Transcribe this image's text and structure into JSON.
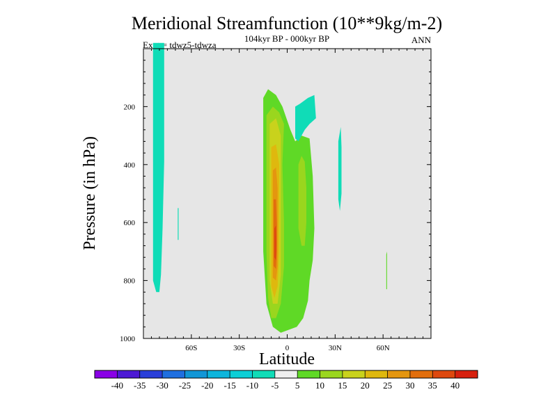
{
  "chart_data": {
    "type": "heatmap",
    "subtype": "filled-contour",
    "title": "Meridional Streamfunction (10**9kg/m-2)",
    "subtitle": "104kyr BP - 000kyr BP",
    "left_label": "Expt = tdwz5-tdwza",
    "right_label": "ANN",
    "xlabel": "Latitude",
    "ylabel": "Pressure (in hPa)",
    "xlim": [
      -90,
      90
    ],
    "ylim": [
      1000,
      0
    ],
    "x_ticks": [
      {
        "value": -60,
        "label": "60S"
      },
      {
        "value": -30,
        "label": "30S"
      },
      {
        "value": 0,
        "label": "0"
      },
      {
        "value": 30,
        "label": "30N"
      },
      {
        "value": 60,
        "label": "60N"
      }
    ],
    "y_ticks": [
      {
        "value": 200,
        "label": "200"
      },
      {
        "value": 400,
        "label": "400"
      },
      {
        "value": 600,
        "label": "600"
      },
      {
        "value": 800,
        "label": "800"
      },
      {
        "value": 1000,
        "label": "1000"
      }
    ],
    "background_color": "#e6e6e6",
    "colorbar": {
      "levels": [
        -40,
        -35,
        -30,
        -25,
        -20,
        -15,
        -10,
        -5,
        5,
        10,
        15,
        20,
        25,
        30,
        35,
        40
      ],
      "colors": [
        "#8a00e6",
        "#4d19d4",
        "#2a3fd9",
        "#1f6fe0",
        "#1296d6",
        "#0db5dc",
        "#0ccfd6",
        "#10dcb7",
        "#eeeeee",
        "#5fd926",
        "#9ad61e",
        "#c9d21c",
        "#dfb80e",
        "#e4960f",
        "#e26e0d",
        "#de480e",
        "#d7200e"
      ]
    },
    "regions": [
      {
        "name": "sh-negative-cell",
        "value": -7.5,
        "points": [
          [
            -84,
            -2
          ],
          [
            -77,
            -2
          ],
          [
            -77,
            39
          ],
          [
            -78,
            62
          ],
          [
            -79,
            78
          ],
          [
            -80,
            84
          ],
          [
            -82,
            84
          ],
          [
            -84,
            80
          ],
          [
            -84,
            60
          ]
        ]
      },
      {
        "name": "sh-small-negative-strip",
        "value": -7.5,
        "points": [
          [
            -68.5,
            55
          ],
          [
            -68,
            55
          ],
          [
            -68,
            66
          ],
          [
            -68.5,
            66
          ]
        ]
      },
      {
        "name": "positive-cell-5",
        "value": 7.5,
        "points": [
          [
            -15,
            17
          ],
          [
            -12,
            14
          ],
          [
            -7,
            16
          ],
          [
            -3,
            20
          ],
          [
            2,
            28
          ],
          [
            5,
            32
          ],
          [
            9,
            30
          ],
          [
            14,
            31
          ],
          [
            16,
            44
          ],
          [
            17,
            62
          ],
          [
            16,
            73
          ],
          [
            14,
            80
          ],
          [
            13,
            87
          ],
          [
            10,
            93
          ],
          [
            6,
            96
          ],
          [
            1,
            97
          ],
          [
            -4,
            98
          ],
          [
            -9,
            96
          ],
          [
            -13,
            88
          ],
          [
            -15,
            70
          ],
          [
            -15,
            40
          ]
        ]
      },
      {
        "name": "positive-cell-10",
        "value": 12.5,
        "points": [
          [
            -13,
            23
          ],
          [
            -9,
            20
          ],
          [
            -5,
            22
          ],
          [
            -2,
            26
          ],
          [
            -3,
            40
          ],
          [
            -2,
            60
          ],
          [
            -2,
            75
          ],
          [
            -4,
            88
          ],
          [
            -7,
            93
          ],
          [
            -10,
            93
          ],
          [
            -12,
            86
          ],
          [
            -13,
            70
          ],
          [
            -13,
            40
          ]
        ]
      },
      {
        "name": "positive-cell-15",
        "value": 17.5,
        "points": [
          [
            -11,
            26
          ],
          [
            -7,
            24
          ],
          [
            -4,
            30
          ],
          [
            -4,
            45
          ],
          [
            -4,
            65
          ],
          [
            -4,
            78
          ],
          [
            -6,
            88
          ],
          [
            -9,
            88
          ],
          [
            -11,
            80
          ],
          [
            -11,
            60
          ],
          [
            -11,
            40
          ]
        ]
      },
      {
        "name": "positive-cell-20",
        "value": 22.5,
        "points": [
          [
            -10,
            34
          ],
          [
            -7,
            33
          ],
          [
            -5,
            40
          ],
          [
            -5,
            55
          ],
          [
            -5,
            70
          ],
          [
            -6,
            82
          ],
          [
            -8,
            86
          ],
          [
            -10,
            82
          ],
          [
            -10,
            65
          ],
          [
            -10,
            45
          ]
        ]
      },
      {
        "name": "positive-cell-25",
        "value": 27.5,
        "points": [
          [
            -9,
            42
          ],
          [
            -7,
            41
          ],
          [
            -6,
            48
          ],
          [
            -6,
            62
          ],
          [
            -6,
            75
          ],
          [
            -7,
            80
          ],
          [
            -9,
            79
          ],
          [
            -9,
            65
          ],
          [
            -9,
            52
          ]
        ]
      },
      {
        "name": "positive-cell-30",
        "value": 32.5,
        "points": [
          [
            -8.5,
            52
          ],
          [
            -7,
            52
          ],
          [
            -6.5,
            60
          ],
          [
            -6.5,
            70
          ],
          [
            -7,
            76
          ],
          [
            -8.5,
            75
          ],
          [
            -8.5,
            62
          ]
        ]
      },
      {
        "name": "positive-cell-35",
        "value": 37.5,
        "points": [
          [
            -8,
            62
          ],
          [
            -7,
            61
          ],
          [
            -6.8,
            67
          ],
          [
            -7,
            73
          ],
          [
            -8,
            72
          ]
        ]
      },
      {
        "name": "nh-secondary-cell",
        "value": 12.5,
        "points": [
          [
            7,
            40
          ],
          [
            9,
            37
          ],
          [
            11,
            39
          ],
          [
            12,
            48
          ],
          [
            12,
            60
          ],
          [
            11,
            68
          ],
          [
            9,
            68
          ],
          [
            7,
            62
          ],
          [
            7,
            50
          ]
        ]
      },
      {
        "name": "upper-negative-patch",
        "value": -7.5,
        "points": [
          [
            5,
            20
          ],
          [
            8,
            19
          ],
          [
            13,
            17
          ],
          [
            17,
            16
          ],
          [
            18,
            24
          ],
          [
            14,
            26
          ],
          [
            11,
            28
          ],
          [
            9,
            30
          ],
          [
            7,
            32
          ],
          [
            5,
            31
          ]
        ]
      },
      {
        "name": "nh-negative-strip",
        "value": -7.5,
        "points": [
          [
            32,
            32
          ],
          [
            33.5,
            27
          ],
          [
            34,
            34
          ],
          [
            34,
            50
          ],
          [
            33,
            56
          ],
          [
            32,
            52
          ]
        ]
      },
      {
        "name": "nh-small-positive-strip",
        "value": 7.5,
        "points": [
          [
            62,
            71
          ],
          [
            62.5,
            70
          ],
          [
            62.5,
            83
          ],
          [
            62,
            83
          ]
        ]
      }
    ]
  }
}
